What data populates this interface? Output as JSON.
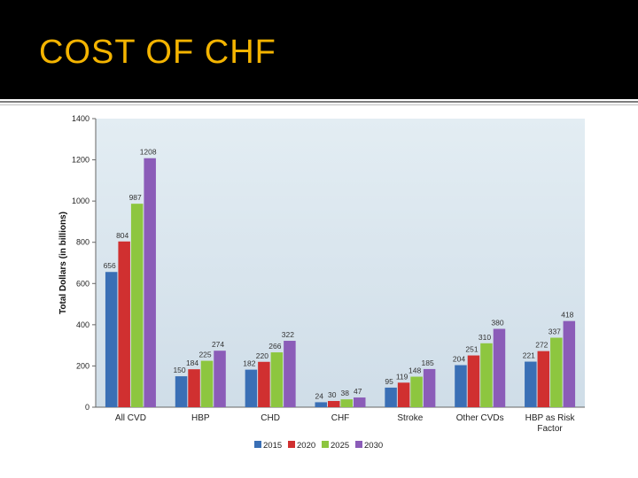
{
  "slide": {
    "title": "COST OF CHF"
  },
  "chart_data": {
    "type": "bar",
    "categories": [
      "All CVD",
      "HBP",
      "CHD",
      "CHF",
      "Stroke",
      "Other CVDs",
      "HBP as Risk Factor"
    ],
    "series": [
      {
        "name": "2015",
        "color": "#3a6fb5",
        "values": [
          656,
          150,
          182,
          24,
          95,
          204,
          221
        ]
      },
      {
        "name": "2020",
        "color": "#d03030",
        "values": [
          804,
          184,
          220,
          30,
          119,
          251,
          272
        ]
      },
      {
        "name": "2025",
        "color": "#8dc63f",
        "values": [
          987,
          225,
          266,
          38,
          148,
          310,
          337
        ]
      },
      {
        "name": "2030",
        "color": "#8b5cb8",
        "values": [
          1208,
          274,
          322,
          47,
          185,
          380,
          418
        ]
      }
    ],
    "ylabel": "Total Dollars (in billions)",
    "xlabel": "",
    "ylim": [
      0,
      1400
    ],
    "yticks": [
      0,
      200,
      400,
      600,
      800,
      1000,
      1200,
      1400
    ],
    "legend_position": "bottom",
    "grid": false,
    "plot_background": "#dce8f0"
  }
}
